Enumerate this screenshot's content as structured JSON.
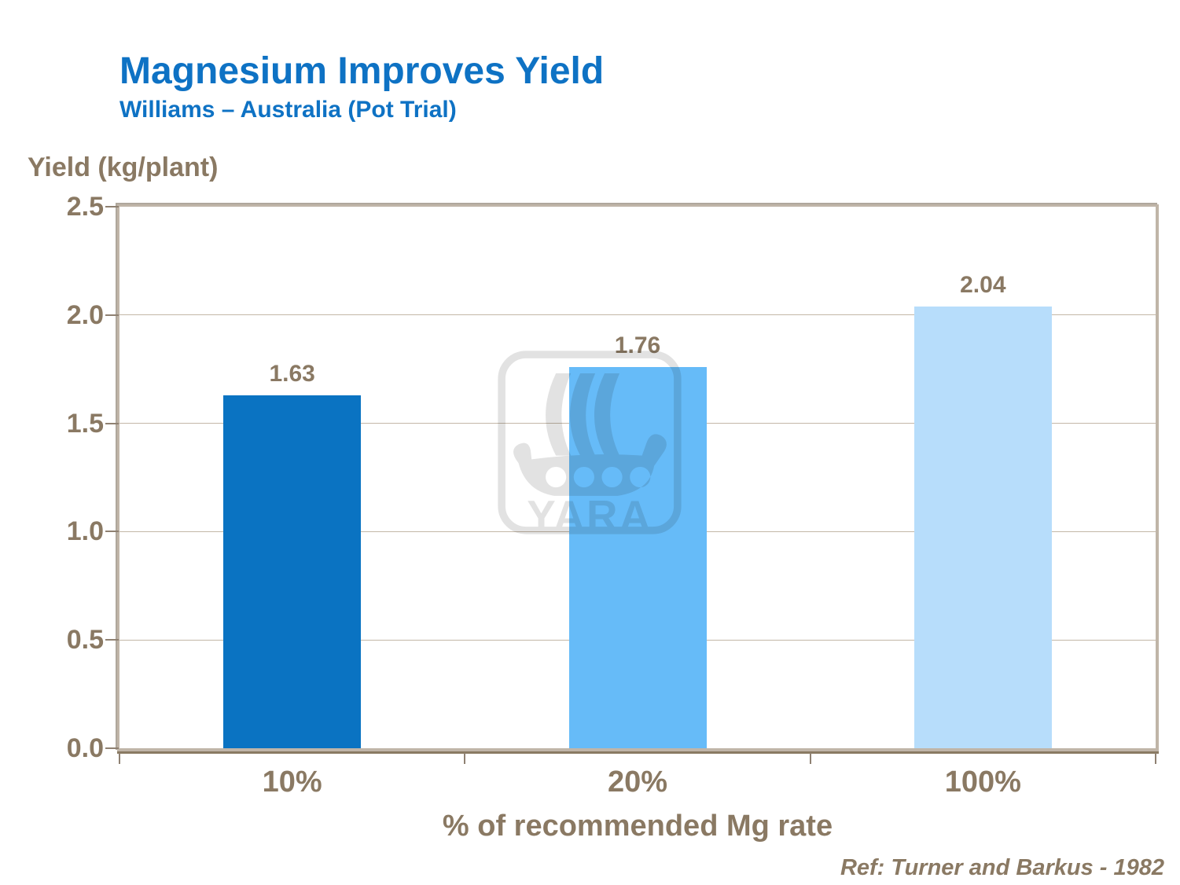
{
  "slide": {
    "title": "Magnesium Improves Yield",
    "subtitle": "Williams – Australia (Pot Trial)",
    "reference": "Ref: Turner and Barkus - 1982"
  },
  "watermark": {
    "text": "YARA",
    "icon": "viking-ship-logo"
  },
  "colors": {
    "heading_blue": "#0E72C4",
    "text_brown": "#8A7963",
    "axis_light": "#C0B5A8",
    "axis_dark": "#8A7A63",
    "gridline": "#C3B7A7",
    "watermark_gray": "#E7E7E7"
  },
  "chart_data": {
    "type": "bar",
    "title": "Magnesium Improves Yield",
    "subtitle": "Williams – Australia (Pot Trial)",
    "ylabel": "Yield (kg/plant)",
    "xlabel": "% of recommended Mg rate",
    "categories": [
      "10%",
      "20%",
      "100%"
    ],
    "values": [
      1.63,
      1.76,
      2.04
    ],
    "value_labels": [
      "1.63",
      "1.76",
      "2.04"
    ],
    "bar_colors": [
      "#0A73C2",
      "#66BBF8",
      "#B7DDFB"
    ],
    "ylim": [
      0,
      2.5
    ],
    "yticks": [
      2.5,
      2.0,
      1.5,
      1.0,
      0.5,
      0.0
    ],
    "ytick_labels": [
      "2.5",
      "2.0",
      "1.5",
      "1.0",
      "0.5",
      "0.0"
    ],
    "grid": true,
    "legend_position": "none",
    "reference": "Ref: Turner and Barkus - 1982"
  }
}
